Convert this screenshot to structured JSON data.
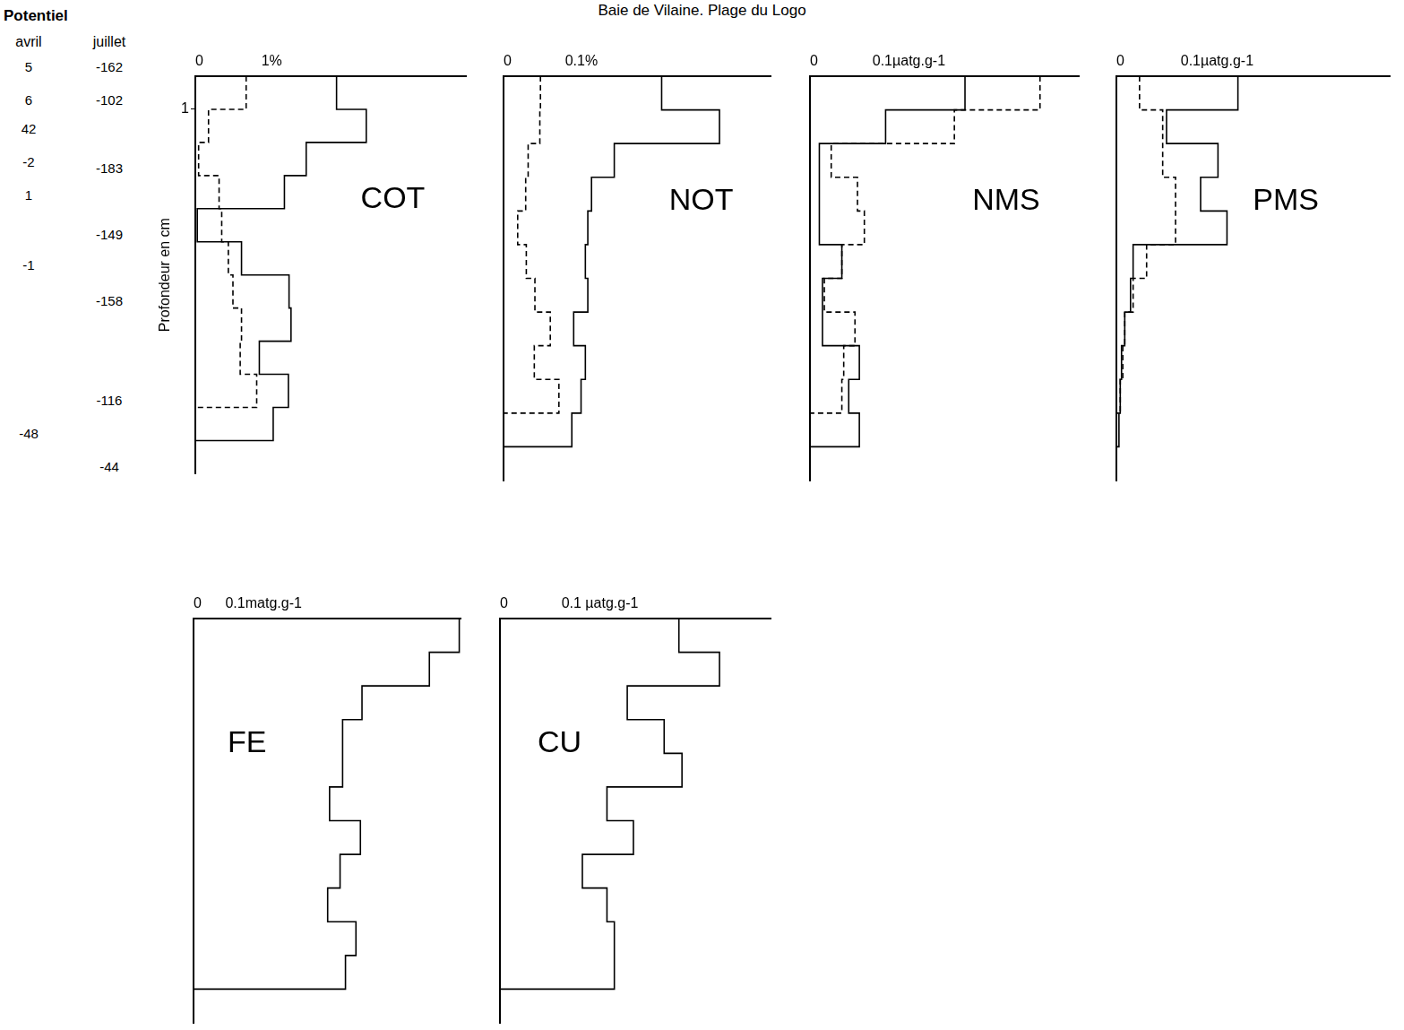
{
  "title": "Baie de Vilaine. Plage du Logo",
  "potentiel": {
    "header": "Potentiel",
    "columns": [
      {
        "label": "avril",
        "entries": [
          {
            "depth": -0.26,
            "value": 5
          },
          {
            "depth": 0.74,
            "value": 6
          },
          {
            "depth": 1.6,
            "value": 42
          },
          {
            "depth": 2.6,
            "value": -2
          },
          {
            "depth": 3.6,
            "value": 1
          },
          {
            "depth": 5.7,
            "value": -1
          },
          {
            "depth": 10.8,
            "value": -48
          }
        ]
      },
      {
        "label": "juillet",
        "entries": [
          {
            "depth": -0.26,
            "value": -162
          },
          {
            "depth": 0.74,
            "value": -102
          },
          {
            "depth": 2.8,
            "value": -183
          },
          {
            "depth": 4.8,
            "value": -149
          },
          {
            "depth": 6.8,
            "value": -158
          },
          {
            "depth": 9.8,
            "value": -116
          },
          {
            "depth": 11.8,
            "value": -44
          }
        ]
      }
    ]
  },
  "chart_data": [
    {
      "type": "line",
      "title": "COT",
      "ylabel": "Profondeur en cm",
      "xlim": [
        0,
        4.1
      ],
      "xticks": [
        0,
        {
          "value": 1,
          "label": "1%"
        }
      ],
      "ylim": [
        0,
        12
      ],
      "yticks": [
        1
      ],
      "grid": false,
      "series": [
        {
          "line_style": "solid",
          "color": "#000000",
          "depths": [
            0,
            1,
            2,
            3,
            4,
            5,
            6,
            7,
            8,
            9,
            10,
            11
          ],
          "values": [
            2.14,
            2.59,
            1.68,
            1.35,
            0.03,
            0.7,
            1.42,
            1.45,
            0.97,
            1.41,
            1.18
          ]
        },
        {
          "line_style": "dashed",
          "color": "#000000",
          "depths": [
            0,
            1,
            2,
            3,
            4,
            5,
            6,
            7,
            8,
            9,
            10
          ],
          "values": [
            0.77,
            0.2,
            0.05,
            0.36,
            0.4,
            0.5,
            0.57,
            0.7,
            0.68,
            0.93
          ]
        }
      ]
    },
    {
      "type": "line",
      "title": "NOT",
      "xlim": [
        0,
        0.434
      ],
      "xticks": [
        0,
        {
          "value": 0.1,
          "label": "0.1%"
        }
      ],
      "ylim": [
        0,
        12
      ],
      "tick_labels": "x",
      "grid": false,
      "series": [
        {
          "line_style": "solid",
          "color": "#000000",
          "depths": [
            0,
            1,
            2,
            3,
            4,
            5,
            6,
            7,
            8,
            9,
            10,
            11
          ],
          "values": [
            0.257,
            0.351,
            0.18,
            0.143,
            0.137,
            0.133,
            0.137,
            0.114,
            0.133,
            0.126,
            0.111
          ]
        },
        {
          "line_style": "dashed",
          "color": "#000000",
          "depths": [
            0,
            1,
            2,
            3,
            4,
            5,
            6,
            7,
            8,
            9,
            10
          ],
          "values": [
            0.06,
            0.059,
            0.04,
            0.036,
            0.023,
            0.037,
            0.051,
            0.076,
            0.05,
            0.09
          ]
        }
      ]
    },
    {
      "type": "line",
      "title": "NMS",
      "xlim": [
        0,
        0.43
      ],
      "xticks": [
        0,
        {
          "value": 0.1,
          "label": "0.1µatg.g-1"
        }
      ],
      "ylim": [
        0,
        12
      ],
      "tick_labels": "x",
      "grid": false,
      "series": [
        {
          "line_style": "solid",
          "color": "#000000",
          "depths": [
            0,
            1,
            2,
            3,
            4,
            5,
            6,
            7,
            8,
            9,
            10,
            11
          ],
          "values": [
            0.248,
            0.121,
            0.015,
            0.015,
            0.015,
            0.051,
            0.02,
            0.02,
            0.079,
            0.062,
            0.079
          ]
        },
        {
          "line_style": "dashed",
          "color": "#000000",
          "depths": [
            0,
            1,
            2,
            3,
            4,
            5,
            6,
            7,
            8,
            9,
            10
          ],
          "values": [
            0.368,
            0.231,
            0.034,
            0.076,
            0.087,
            0.051,
            0.023,
            0.072,
            0.054,
            0.051
          ]
        }
      ]
    },
    {
      "type": "line",
      "title": "PMS",
      "xlim": [
        0,
        0.425
      ],
      "xticks": [
        0,
        {
          "value": 0.1,
          "label": "0.1µatg.g-1"
        }
      ],
      "ylim": [
        0,
        12
      ],
      "tick_labels": "x",
      "grid": false,
      "series": [
        {
          "line_style": "solid",
          "color": "#000000",
          "depths": [
            0,
            1,
            2,
            3,
            4,
            5,
            6,
            7,
            8,
            9,
            10,
            11
          ],
          "values": [
            0.189,
            0.078,
            0.158,
            0.131,
            0.172,
            0.026,
            0.022,
            0.013,
            0.008,
            0.006,
            0.004
          ]
        },
        {
          "line_style": "dashed",
          "color": "#000000",
          "depths": [
            0,
            1,
            2,
            3,
            4,
            5,
            6,
            7,
            8,
            9,
            10
          ],
          "values": [
            0.036,
            0.072,
            0.072,
            0.092,
            0.092,
            0.047,
            0.026,
            0.013,
            0.01,
            0.006
          ]
        }
      ]
    },
    {
      "type": "line",
      "title": "FE",
      "xlim": [
        0,
        0.84
      ],
      "xticks": [
        0,
        {
          "value": 0.1,
          "label": "0.1matg.g-1"
        }
      ],
      "ylim": [
        0,
        12
      ],
      "tick_labels": "x",
      "grid": false,
      "series": [
        {
          "line_style": "solid",
          "color": "#000000",
          "depths": [
            0,
            1,
            2,
            3,
            4,
            5,
            6,
            7,
            8,
            9,
            10,
            11
          ],
          "values": [
            0.836,
            0.742,
            0.53,
            0.469,
            0.469,
            0.428,
            0.525,
            0.461,
            0.422,
            0.511,
            0.478
          ]
        }
      ]
    },
    {
      "type": "line",
      "title": "CU",
      "xlim": [
        0,
        0.44
      ],
      "xticks": [
        0,
        {
          "value": 0.1,
          "label": "0.1 µatg.g-1"
        }
      ],
      "ylim": [
        0,
        12
      ],
      "tick_labels": "x",
      "grid": false,
      "series": [
        {
          "line_style": "solid",
          "color": "#000000",
          "depths": [
            0,
            1,
            2,
            3,
            4,
            5,
            6,
            7,
            8,
            9,
            10,
            11
          ],
          "values": [
            0.291,
            0.357,
            0.207,
            0.267,
            0.296,
            0.174,
            0.217,
            0.134,
            0.174,
            0.186,
            0.186
          ]
        }
      ]
    }
  ]
}
